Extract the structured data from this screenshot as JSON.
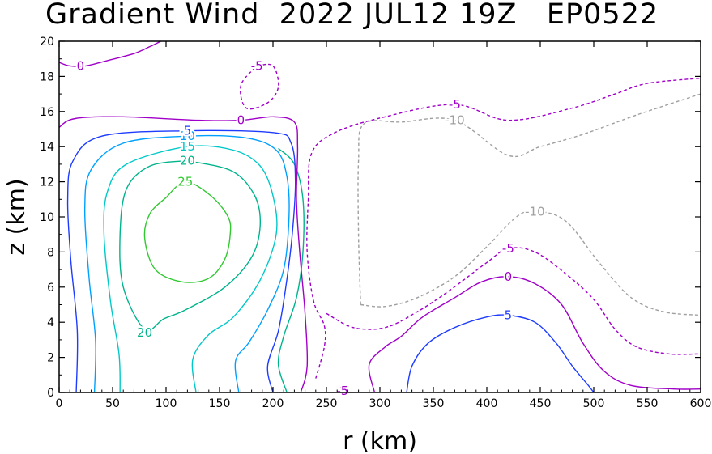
{
  "title": "Gradient Wind  2022 JUL12 19Z   EP0522",
  "chart_data": {
    "type": "contour",
    "title": "Gradient Wind  2022 JUL12 19Z   EP0522",
    "xlabel": "r (km)",
    "ylabel": "z (km)",
    "xlim": [
      0,
      600
    ],
    "ylim": [
      0,
      20
    ],
    "x_ticks": [
      "0",
      "50",
      "100",
      "150",
      "200",
      "250",
      "300",
      "350",
      "400",
      "450",
      "500",
      "550",
      "600"
    ],
    "y_ticks": [
      "0",
      "2",
      "4",
      "6",
      "8",
      "10",
      "12",
      "14",
      "16",
      "18",
      "20"
    ],
    "contour_levels": [
      -10,
      -5,
      0,
      5,
      10,
      15,
      20,
      25
    ],
    "contour_colors": {
      "-10": "#a0a0a0",
      "-5": "#a000c8",
      "0": "#a000c8",
      "5": "#1e3cff",
      "10": "#00a0ff",
      "15": "#00c8c8",
      "20": "#00b48c",
      "25": "#32c832"
    },
    "negative_dashed": true,
    "contours": [
      {
        "level": 25,
        "label": "25",
        "label_at": [
          118,
          12.0
        ],
        "points": [
          [
            100,
            11.1
          ],
          [
            118,
            12.0
          ],
          [
            142,
            11.2
          ],
          [
            158,
            10.0
          ],
          [
            160,
            9.0
          ],
          [
            155,
            7.6
          ],
          [
            140,
            6.5
          ],
          [
            115,
            6.3
          ],
          [
            90,
            7.0
          ],
          [
            80,
            8.8
          ],
          [
            85,
            10.2
          ],
          [
            100,
            11.1
          ]
        ]
      },
      {
        "level": 20,
        "label": "20",
        "label_at": [
          120,
          13.2
        ],
        "points": [
          [
            120,
            13.2
          ],
          [
            162,
            12.6
          ],
          [
            183,
            11.2
          ],
          [
            188,
            9.5
          ],
          [
            180,
            7.7
          ],
          [
            155,
            6.0
          ],
          [
            118,
            4.7
          ],
          [
            98,
            4.2
          ],
          [
            80,
            3.6
          ],
          [
            60,
            6.0
          ],
          [
            57,
            9.0
          ],
          [
            63,
            11.6
          ],
          [
            85,
            12.9
          ],
          [
            120,
            13.2
          ]
        ],
        "extra_label_at": [
          80,
          3.4
        ]
      },
      {
        "level": 20,
        "label": "",
        "label_at": null,
        "points": [
          [
            213,
            0
          ],
          [
            205,
            1.6
          ],
          [
            210,
            3.2
          ],
          [
            222,
            5.4
          ],
          [
            228,
            8.0
          ],
          [
            228,
            11.0
          ],
          [
            220,
            13.0
          ],
          [
            205,
            13.9
          ]
        ]
      },
      {
        "level": 15,
        "label": "15",
        "label_at": [
          120,
          14.0
        ],
        "points": [
          [
            57,
            0
          ],
          [
            56,
            2.2
          ],
          [
            48,
            5.2
          ],
          [
            42,
            9.0
          ],
          [
            45,
            11.4
          ],
          [
            63,
            13.0
          ],
          [
            120,
            14.0
          ],
          [
            163,
            13.8
          ],
          [
            188,
            12.9
          ],
          [
            200,
            11.2
          ],
          [
            203,
            9.0
          ],
          [
            188,
            6.4
          ],
          [
            163,
            4.3
          ],
          [
            140,
            3.3
          ],
          [
            125,
            1.9
          ],
          [
            128,
            0
          ]
        ]
      },
      {
        "level": 10,
        "label": "10",
        "label_at": [
          120,
          14.6
        ],
        "points": [
          [
            33,
            0
          ],
          [
            34,
            3.0
          ],
          [
            28,
            6.5
          ],
          [
            24,
            10.5
          ],
          [
            30,
            12.7
          ],
          [
            60,
            14.2
          ],
          [
            120,
            14.6
          ],
          [
            175,
            14.5
          ],
          [
            203,
            13.8
          ],
          [
            213,
            12.3
          ],
          [
            215,
            10.0
          ],
          [
            210,
            7.0
          ],
          [
            195,
            4.7
          ],
          [
            178,
            2.9
          ],
          [
            165,
            1.8
          ],
          [
            168,
            0
          ]
        ]
      },
      {
        "level": 5,
        "label": "5",
        "label_at": [
          120,
          14.9
        ],
        "points": [
          [
            16,
            0
          ],
          [
            17,
            3.5
          ],
          [
            11,
            7.5
          ],
          [
            8,
            11.0
          ],
          [
            13,
            13.2
          ],
          [
            40,
            14.6
          ],
          [
            120,
            14.9
          ],
          [
            200,
            14.8
          ],
          [
            217,
            14.2
          ],
          [
            221,
            12.0
          ],
          [
            218,
            9.0
          ],
          [
            212,
            6.0
          ],
          [
            205,
            3.5
          ],
          [
            195,
            1.5
          ],
          [
            200,
            0
          ]
        ]
      },
      {
        "level": 5,
        "label": "5",
        "label_at": [
          420,
          4.4
        ],
        "points": [
          [
            325,
            0
          ],
          [
            330,
            1.5
          ],
          [
            345,
            2.8
          ],
          [
            370,
            3.7
          ],
          [
            400,
            4.3
          ],
          [
            420,
            4.4
          ],
          [
            445,
            4.0
          ],
          [
            465,
            2.8
          ],
          [
            480,
            1.5
          ],
          [
            495,
            0.4
          ],
          [
            500,
            0
          ]
        ]
      },
      {
        "level": 0,
        "label": "0",
        "label_at": [
          170,
          15.5
        ],
        "points": [
          [
            0,
            15.1
          ],
          [
            15,
            15.6
          ],
          [
            60,
            15.7
          ],
          [
            130,
            15.5
          ],
          [
            170,
            15.5
          ],
          [
            200,
            15.7
          ],
          [
            220,
            15.4
          ],
          [
            223,
            14.0
          ],
          [
            222,
            11.0
          ],
          [
            225,
            8.0
          ],
          [
            230,
            4.5
          ],
          [
            232,
            1.5
          ],
          [
            226,
            0
          ]
        ]
      },
      {
        "level": 0,
        "label": "0",
        "label_at": [
          20,
          18.6
        ],
        "points": [
          [
            0,
            18.8
          ],
          [
            10,
            18.6
          ],
          [
            25,
            18.6
          ],
          [
            45,
            18.9
          ],
          [
            70,
            19.3
          ],
          [
            85,
            19.7
          ],
          [
            95,
            20
          ]
        ]
      },
      {
        "level": 0,
        "label": "0",
        "label_at": [
          420,
          6.6
        ],
        "points": [
          [
            295,
            0
          ],
          [
            290,
            1.6
          ],
          [
            305,
            2.6
          ],
          [
            320,
            3.2
          ],
          [
            340,
            4.3
          ],
          [
            370,
            5.4
          ],
          [
            395,
            6.3
          ],
          [
            420,
            6.6
          ],
          [
            445,
            6.2
          ],
          [
            470,
            5.0
          ],
          [
            490,
            2.8
          ],
          [
            510,
            1.2
          ],
          [
            535,
            0.4
          ],
          [
            575,
            0.2
          ],
          [
            600,
            0.2
          ]
        ]
      },
      {
        "level": -5,
        "label": "-5",
        "label_at": [
          370,
          16.4
        ],
        "dashed": true,
        "points": [
          [
            240,
            0.8
          ],
          [
            248,
            2.6
          ],
          [
            248,
            3.8
          ],
          [
            238,
            5.2
          ],
          [
            232,
            8.0
          ],
          [
            233,
            11.0
          ],
          [
            236,
            13.6
          ],
          [
            258,
            14.8
          ],
          [
            305,
            15.7
          ],
          [
            370,
            16.4
          ],
          [
            420,
            15.5
          ],
          [
            480,
            16.2
          ],
          [
            520,
            17.0
          ],
          [
            550,
            17.6
          ],
          [
            600,
            17.9
          ]
        ]
      },
      {
        "level": -5,
        "label": "-5",
        "label_at": [
          185,
          18.6
        ],
        "dashed": true,
        "points": [
          [
            185,
            18.6
          ],
          [
            200,
            18.6
          ],
          [
            205,
            17.4
          ],
          [
            195,
            16.5
          ],
          [
            175,
            16.2
          ],
          [
            170,
            17.5
          ],
          [
            185,
            18.6
          ]
        ]
      },
      {
        "level": -5,
        "label": "-5",
        "label_at": [
          420,
          8.2
        ],
        "dashed": true,
        "points": [
          [
            263,
            0.3
          ],
          [
            267,
            0.1
          ]
        ],
        "extra_label_at": [
          265,
          0.1
        ]
      },
      {
        "level": -5,
        "label": "",
        "dashed": true,
        "points": [
          [
            250,
            4.5
          ],
          [
            275,
            3.7
          ],
          [
            305,
            3.7
          ],
          [
            335,
            4.6
          ],
          [
            365,
            5.8
          ],
          [
            400,
            7.4
          ],
          [
            420,
            8.2
          ],
          [
            445,
            8.0
          ],
          [
            475,
            6.7
          ],
          [
            500,
            5.3
          ],
          [
            520,
            3.6
          ],
          [
            540,
            2.6
          ],
          [
            570,
            2.2
          ],
          [
            600,
            2.2
          ]
        ]
      },
      {
        "level": -10,
        "label": "-10",
        "label_at": [
          370,
          15.5
        ],
        "dashed": true,
        "points": [
          [
            282,
            5.0
          ],
          [
            280,
            9.0
          ],
          [
            280,
            13.2
          ],
          [
            285,
            15.3
          ],
          [
            320,
            15.4
          ],
          [
            370,
            15.5
          ],
          [
            420,
            13.5
          ],
          [
            450,
            14.0
          ],
          [
            490,
            14.7
          ],
          [
            540,
            15.8
          ],
          [
            600,
            17.0
          ]
        ]
      },
      {
        "level": -10,
        "label": "-10",
        "label_at": [
          445,
          10.3
        ],
        "dashed": true,
        "points": [
          [
            282,
            5.0
          ],
          [
            305,
            4.9
          ],
          [
            335,
            5.4
          ],
          [
            370,
            6.6
          ],
          [
            400,
            8.3
          ],
          [
            430,
            10.1
          ],
          [
            450,
            10.3
          ],
          [
            475,
            9.7
          ],
          [
            505,
            7.4
          ],
          [
            535,
            5.4
          ],
          [
            565,
            4.6
          ],
          [
            600,
            4.4
          ]
        ]
      }
    ]
  }
}
